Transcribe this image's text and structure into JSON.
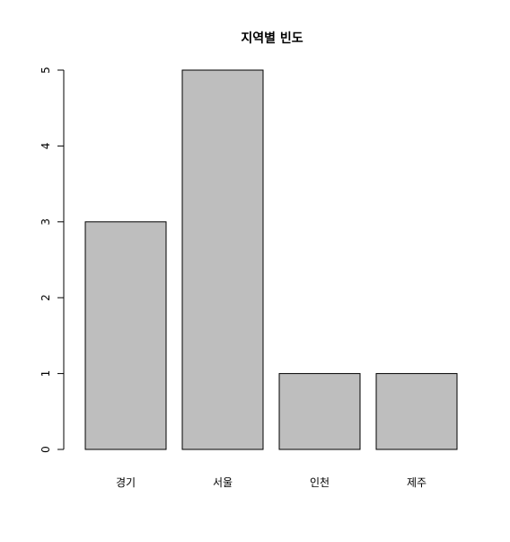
{
  "chart_data": {
    "type": "bar",
    "title": "지역별 빈도",
    "xlabel": "",
    "ylabel": "",
    "categories": [
      "경기",
      "서울",
      "인천",
      "제주"
    ],
    "values": [
      3,
      5,
      1,
      1
    ],
    "ylim": [
      0,
      5
    ],
    "yticks": [
      "0",
      "1",
      "2",
      "3",
      "4",
      "5"
    ],
    "bar_color": "#bebebe",
    "bar_border_color": "#000000",
    "grid": false,
    "legend": "none"
  }
}
